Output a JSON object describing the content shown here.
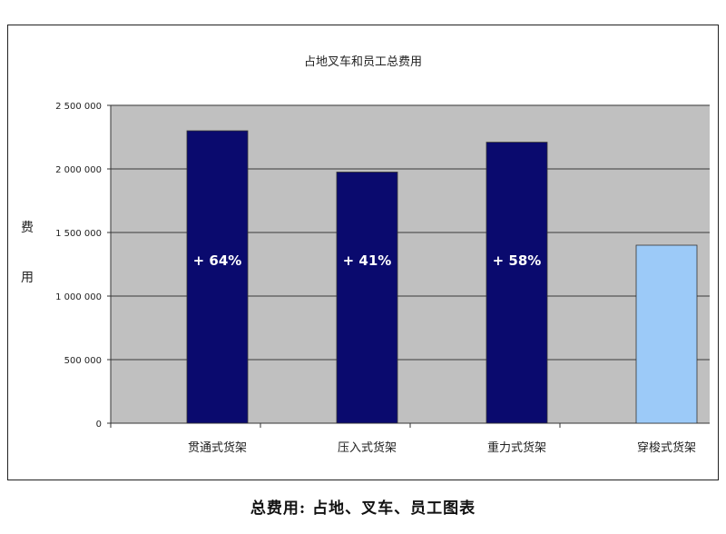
{
  "chart_data": {
    "type": "bar",
    "title": "占地叉车和员工总费用",
    "ylabel": "费用",
    "xlabel": "",
    "categories": [
      "贯通式货架",
      "压入式货架",
      "重力式货架",
      "穿梭式货架"
    ],
    "values": [
      2300000,
      1975000,
      2210000,
      1400000
    ],
    "data_labels": [
      "+ 64%",
      "+ 41%",
      "+ 58%",
      ""
    ],
    "ylim": [
      0,
      2500000
    ],
    "yticks": [
      0,
      500000,
      1000000,
      1500000,
      2000000,
      2500000
    ],
    "ytick_labels": [
      "0",
      "500 000",
      "1 000 000",
      "1 500 000",
      "2 000 000",
      "2 500 000"
    ],
    "grid": true,
    "colors": {
      "bar": "#0a0a6e",
      "highlight_bar": "#9ccaf8",
      "plot_bg": "#c0c0c0",
      "gridline": "#555555"
    }
  },
  "caption": "总费用: 占地、叉车、员工图表"
}
